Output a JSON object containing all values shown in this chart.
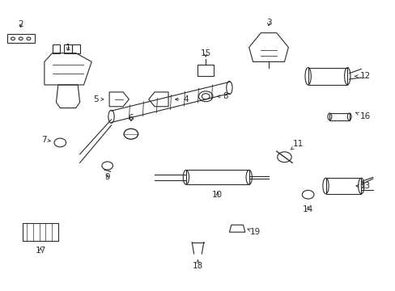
{
  "title": "",
  "background_color": "#ffffff",
  "line_color": "#2a2a2a",
  "text_color": "#000000",
  "figsize": [
    4.89,
    3.6
  ],
  "dpi": 100
}
